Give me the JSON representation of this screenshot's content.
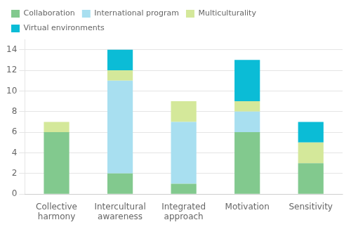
{
  "chart_data": {
    "type": "bar",
    "stacked": true,
    "categories": [
      "Collective\nharmony",
      "Intercultural\nawareness",
      "Integrated\napproach",
      "Motivation",
      "Sensitivity"
    ],
    "series": [
      {
        "name": "Collaboration",
        "color": "#82c98e",
        "values": [
          6,
          2,
          1,
          6,
          3
        ]
      },
      {
        "name": "International program",
        "color": "#a8dff0",
        "values": [
          0,
          9,
          6,
          2,
          0
        ]
      },
      {
        "name": "Multiculturality",
        "color": "#d4e89a",
        "values": [
          1,
          1,
          2,
          1,
          2
        ]
      },
      {
        "name": "Virtual environments",
        "color": "#0bbcd6",
        "values": [
          0,
          2,
          0,
          4,
          2
        ]
      }
    ],
    "ylim": [
      0,
      15
    ],
    "yticks": [
      0,
      2,
      4,
      6,
      8,
      10,
      12,
      14
    ],
    "grid": true,
    "legend": "upper left"
  }
}
